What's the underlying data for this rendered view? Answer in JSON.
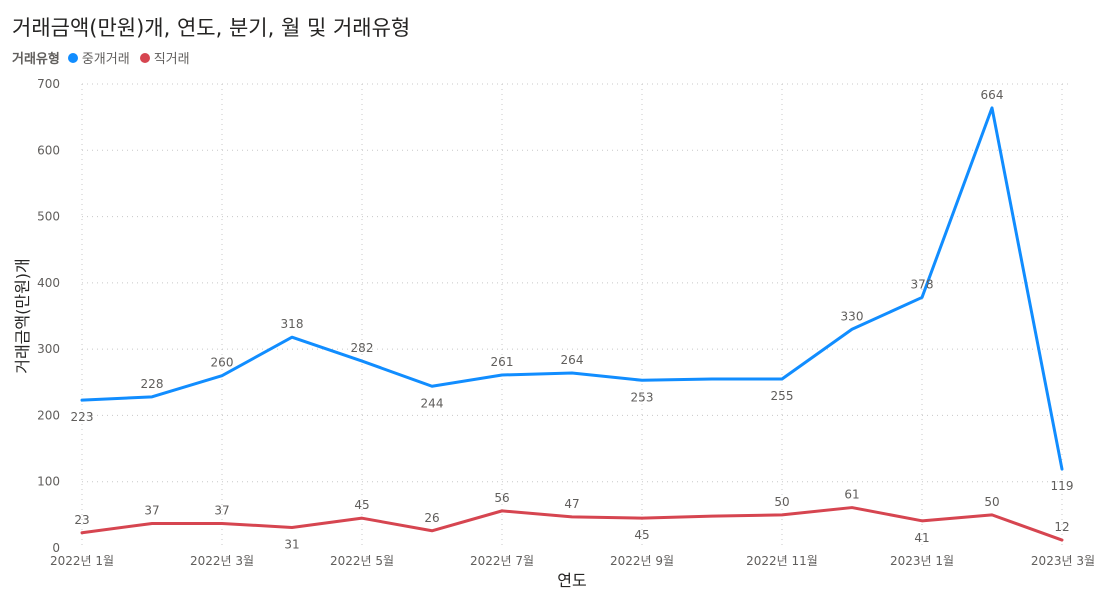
{
  "chart_data": {
    "type": "line",
    "title": "거래금액(만원)개, 연도, 분기, 월 및 거래유형",
    "xlabel": "연도",
    "ylabel": "거래금액(만원)개",
    "legend_title": "거래유형",
    "ylim": [
      0,
      700
    ],
    "y_ticks": [
      "0",
      "100",
      "200",
      "300",
      "400",
      "500",
      "600",
      "700"
    ],
    "x": [
      "2022-01",
      "2022-02",
      "2022-03",
      "2022-04",
      "2022-05",
      "2022-06",
      "2022-07",
      "2022-08",
      "2022-09",
      "2022-10",
      "2022-11",
      "2022-12",
      "2023-01",
      "2023-02",
      "2023-03"
    ],
    "x_tick_labels": [
      {
        "index": 0,
        "label": "2022년 1월"
      },
      {
        "index": 2,
        "label": "2022년 3월"
      },
      {
        "index": 4,
        "label": "2022년 5월"
      },
      {
        "index": 6,
        "label": "2022년 7월"
      },
      {
        "index": 8,
        "label": "2022년 9월"
      },
      {
        "index": 10,
        "label": "2022년 11월"
      },
      {
        "index": 12,
        "label": "2023년 1월"
      },
      {
        "index": 14,
        "label": "2023년 3월"
      }
    ],
    "grid": true,
    "legend_position": "top-left",
    "series": [
      {
        "name": "중개거래",
        "color": "#118DFF",
        "values": [
          223,
          228,
          260,
          318,
          282,
          244,
          261,
          264,
          253,
          255,
          255,
          330,
          378,
          664,
          119
        ],
        "labels": [
          "223",
          "228",
          "260",
          "318",
          "282",
          "244",
          "261",
          "264",
          "253",
          "",
          "255",
          "330",
          "378",
          "664",
          "119"
        ],
        "label_pos": [
          "below",
          "above",
          "above",
          "above",
          "above",
          "below",
          "above",
          "above",
          "below",
          "none",
          "below",
          "above",
          "above",
          "above",
          "below"
        ]
      },
      {
        "name": "직거래",
        "color": "#D64550",
        "values": [
          23,
          37,
          37,
          31,
          45,
          26,
          56,
          47,
          45,
          48,
          50,
          61,
          41,
          50,
          12
        ],
        "labels": [
          "23",
          "37",
          "37",
          "31",
          "45",
          "26",
          "56",
          "47",
          "45",
          "",
          "50",
          "61",
          "41",
          "50",
          "12"
        ],
        "label_pos": [
          "above",
          "above",
          "above",
          "below",
          "above",
          "above",
          "above",
          "above",
          "below",
          "none",
          "above",
          "above",
          "below",
          "above",
          "above"
        ]
      }
    ]
  }
}
